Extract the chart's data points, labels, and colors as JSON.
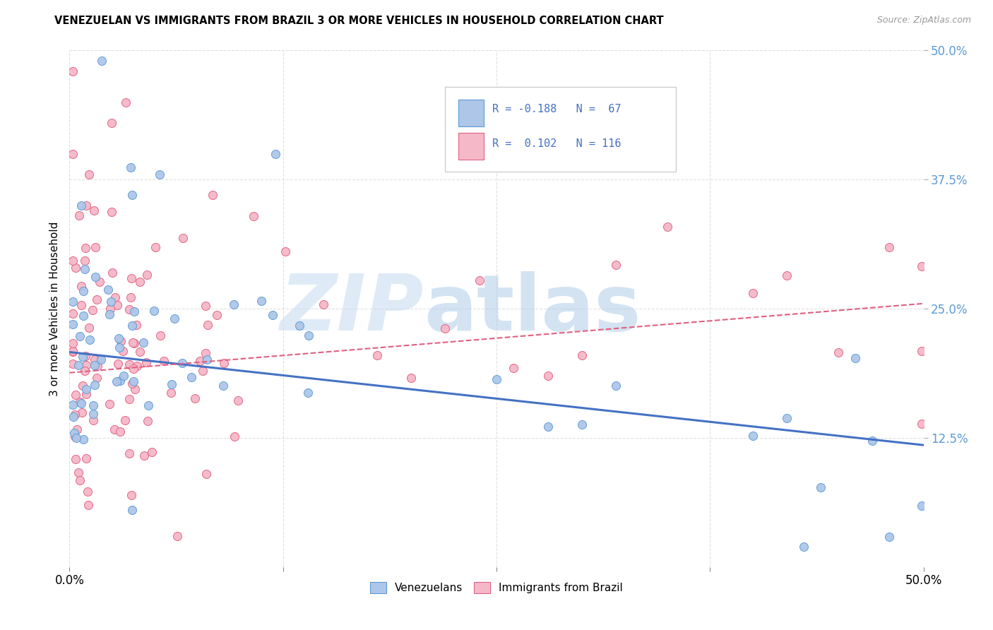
{
  "title": "VENEZUELAN VS IMMIGRANTS FROM BRAZIL 3 OR MORE VEHICLES IN HOUSEHOLD CORRELATION CHART",
  "source": "Source: ZipAtlas.com",
  "ylabel": "3 or more Vehicles in Household",
  "blue_color": "#aec6e8",
  "pink_color": "#f5b8c8",
  "blue_edge_color": "#5b9bd5",
  "pink_edge_color": "#e06080",
  "blue_line_color": "#4472c4",
  "pink_line_color": "#e06080",
  "right_tick_color": "#5b9bd5",
  "grid_color": "#e0e0e0",
  "watermark_zip_color": "#c8ddf0",
  "watermark_atlas_color": "#b0cce8",
  "xlim": [
    0.0,
    0.5
  ],
  "ylim": [
    0.0,
    0.5
  ],
  "blue_line_start": 0.208,
  "blue_line_end": 0.118,
  "pink_line_start": 0.188,
  "pink_line_end": 0.255
}
